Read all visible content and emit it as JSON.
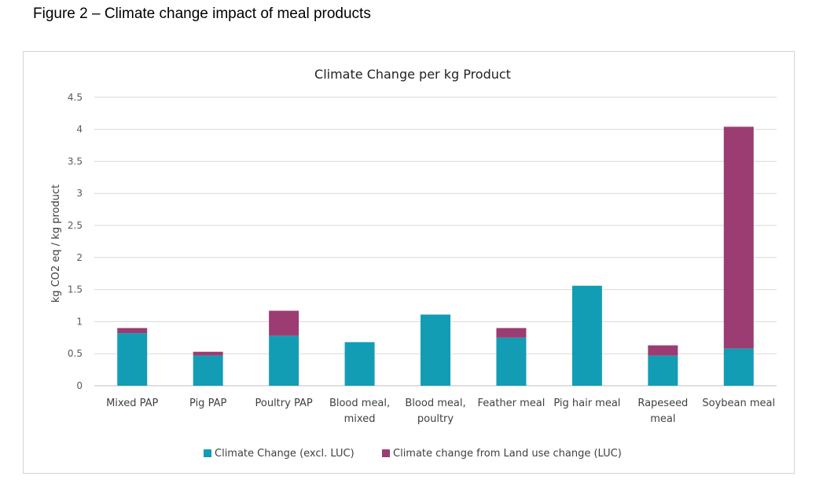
{
  "figure_caption": "Figure 2 – Climate change impact of meal products",
  "colors": {
    "base": "#139db5",
    "luc": "#9b3d72",
    "grid": "#d9d9d9",
    "axis": "#bfbfbf"
  },
  "chart_data": {
    "type": "bar",
    "stacked": true,
    "title": "Climate Change per kg Product",
    "xlabel": "",
    "ylabel": "kg CO2 eq / kg product",
    "ylim": [
      0,
      4.5
    ],
    "yticks": [
      "0",
      "0.5",
      "1",
      "1.5",
      "2",
      "2.5",
      "3",
      "3.5",
      "4",
      "4.5"
    ],
    "categories": [
      [
        "Mixed PAP"
      ],
      [
        "Pig PAP"
      ],
      [
        "Poultry PAP"
      ],
      [
        "Blood meal,",
        "mixed"
      ],
      [
        "Blood meal,",
        "poultry"
      ],
      [
        "Feather meal"
      ],
      [
        "Pig hair meal"
      ],
      [
        "Rapeseed",
        "meal"
      ],
      [
        "Soybean meal"
      ]
    ],
    "series": [
      {
        "name": "Climate Change (excl. LUC)",
        "values": [
          0.82,
          0.47,
          0.78,
          0.68,
          1.11,
          0.75,
          1.56,
          0.47,
          0.58
        ]
      },
      {
        "name": "Climate change from Land use change (LUC)",
        "values": [
          0.08,
          0.06,
          0.39,
          0,
          0,
          0.15,
          0,
          0.16,
          3.46
        ]
      }
    ],
    "legend_position": "bottom"
  }
}
